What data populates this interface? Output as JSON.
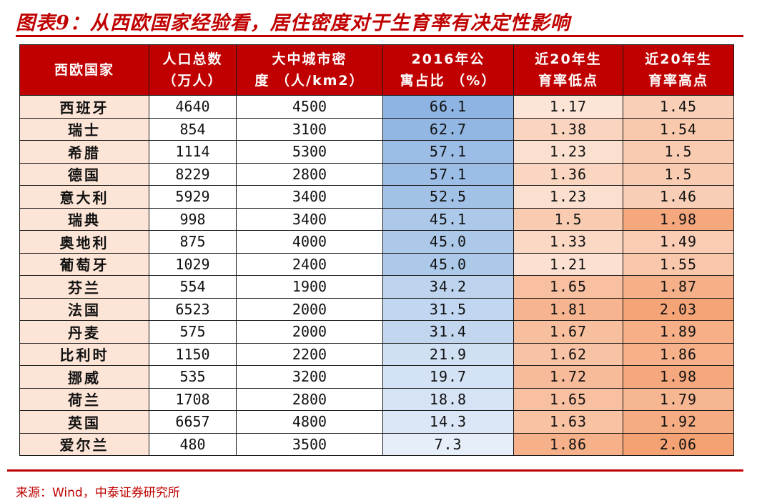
{
  "title": "图表9：从西欧国家经验看，居住密度对于生育率有决定性影响",
  "table": {
    "headers": [
      {
        "line1": "西欧国家",
        "line2": ""
      },
      {
        "line1": "人口总数",
        "line2": "（万人）"
      },
      {
        "line1": "大中城市密",
        "line2": "度 （人/km2）"
      },
      {
        "line1": "2016年公",
        "line2": "寓占比 （%）"
      },
      {
        "line1": "近20年生",
        "line2": "育率低点"
      },
      {
        "line1": "近20年生",
        "line2": "育率高点"
      }
    ],
    "rows": [
      {
        "country": "西班牙",
        "population": "4640",
        "density": "4500",
        "apartment_share": "66.1",
        "fertility_low": "1.17",
        "fertility_high": "1.45"
      },
      {
        "country": "瑞士",
        "population": "854",
        "density": "3100",
        "apartment_share": "62.7",
        "fertility_low": "1.38",
        "fertility_high": "1.54"
      },
      {
        "country": "希腊",
        "population": "1114",
        "density": "5300",
        "apartment_share": "57.1",
        "fertility_low": "1.23",
        "fertility_high": "1.5"
      },
      {
        "country": "德国",
        "population": "8229",
        "density": "2800",
        "apartment_share": "57.1",
        "fertility_low": "1.36",
        "fertility_high": "1.5"
      },
      {
        "country": "意大利",
        "population": "5929",
        "density": "3400",
        "apartment_share": "52.5",
        "fertility_low": "1.23",
        "fertility_high": "1.46"
      },
      {
        "country": "瑞典",
        "population": "998",
        "density": "3400",
        "apartment_share": "45.1",
        "fertility_low": "1.5",
        "fertility_high": "1.98"
      },
      {
        "country": "奥地利",
        "population": "875",
        "density": "4000",
        "apartment_share": "45.0",
        "fertility_low": "1.33",
        "fertility_high": "1.49"
      },
      {
        "country": "葡萄牙",
        "population": "1029",
        "density": "2400",
        "apartment_share": "45.0",
        "fertility_low": "1.21",
        "fertility_high": "1.55"
      },
      {
        "country": "芬兰",
        "population": "554",
        "density": "1900",
        "apartment_share": "34.2",
        "fertility_low": "1.65",
        "fertility_high": "1.87"
      },
      {
        "country": "法国",
        "population": "6523",
        "density": "2000",
        "apartment_share": "31.5",
        "fertility_low": "1.81",
        "fertility_high": "2.03"
      },
      {
        "country": "丹麦",
        "population": "575",
        "density": "2000",
        "apartment_share": "31.4",
        "fertility_low": "1.67",
        "fertility_high": "1.89"
      },
      {
        "country": "比利时",
        "population": "1150",
        "density": "2200",
        "apartment_share": "21.9",
        "fertility_low": "1.62",
        "fertility_high": "1.86"
      },
      {
        "country": "挪威",
        "population": "535",
        "density": "3200",
        "apartment_share": "19.7",
        "fertility_low": "1.72",
        "fertility_high": "1.98"
      },
      {
        "country": "荷兰",
        "population": "1708",
        "density": "2800",
        "apartment_share": "18.8",
        "fertility_low": "1.65",
        "fertility_high": "1.79"
      },
      {
        "country": "英国",
        "population": "6657",
        "density": "4800",
        "apartment_share": "14.3",
        "fertility_low": "1.63",
        "fertility_high": "1.92"
      },
      {
        "country": "爱尔兰",
        "population": "480",
        "density": "3500",
        "apartment_share": "7.3",
        "fertility_low": "1.86",
        "fertility_high": "2.06"
      }
    ]
  },
  "colors": {
    "brand_red": "#c00000",
    "country_fill": "#fce4d6",
    "share_scale_low": "#e6eef9",
    "share_scale_high": "#8db4e2",
    "rate_scale_low": "#fce4d6",
    "rate_scale_high": "#f4a274"
  },
  "source": "来源：Wind，中泰证券研究所"
}
